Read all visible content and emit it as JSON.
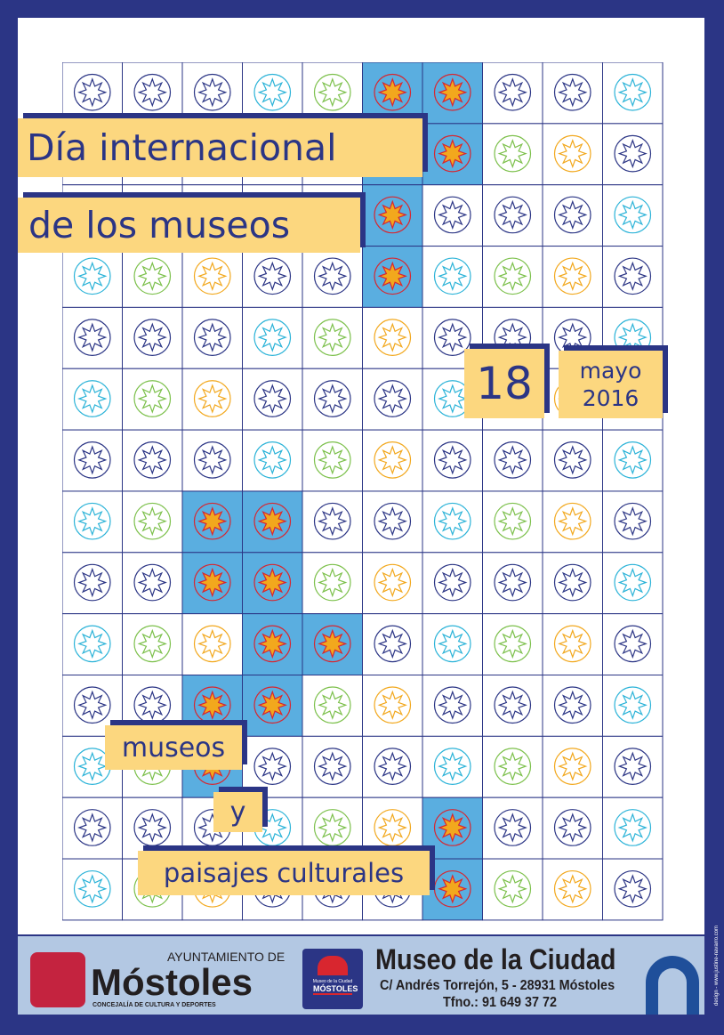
{
  "title": {
    "line1": "Día internacional",
    "line2": "de los museos"
  },
  "date": {
    "day": "18",
    "month": "mayo",
    "year": "2016"
  },
  "theme": {
    "line1": "museos",
    "line2": "y",
    "line3": "paisajes culturales"
  },
  "footer": {
    "ayto_top": "AYUNTAMIENTO DE",
    "ayto_name": "Móstoles",
    "ayto_sub": "CONCEJALÍA DE CULTURA Y DEPORTES",
    "museo_logo_small": "Museo de la Ciudad",
    "museo_logo_city": "MÓSTOLES",
    "museo_name": "Museo de la Ciudad",
    "address": "C/ Andrés Torrejón, 5 - 28931 Móstoles",
    "phone": "Tfno.: 91 649 37 72"
  },
  "credit": "design - www.justine-navarro.com",
  "colors": {
    "navy": "#2b3585",
    "yellow": "#fcd77f",
    "tile_blue": "#5aaee0",
    "red": "#d8262f",
    "orange": "#f2a81d",
    "cyan": "#2bb3d8",
    "green": "#7cc04b",
    "footer": "#b3c8e3"
  }
}
